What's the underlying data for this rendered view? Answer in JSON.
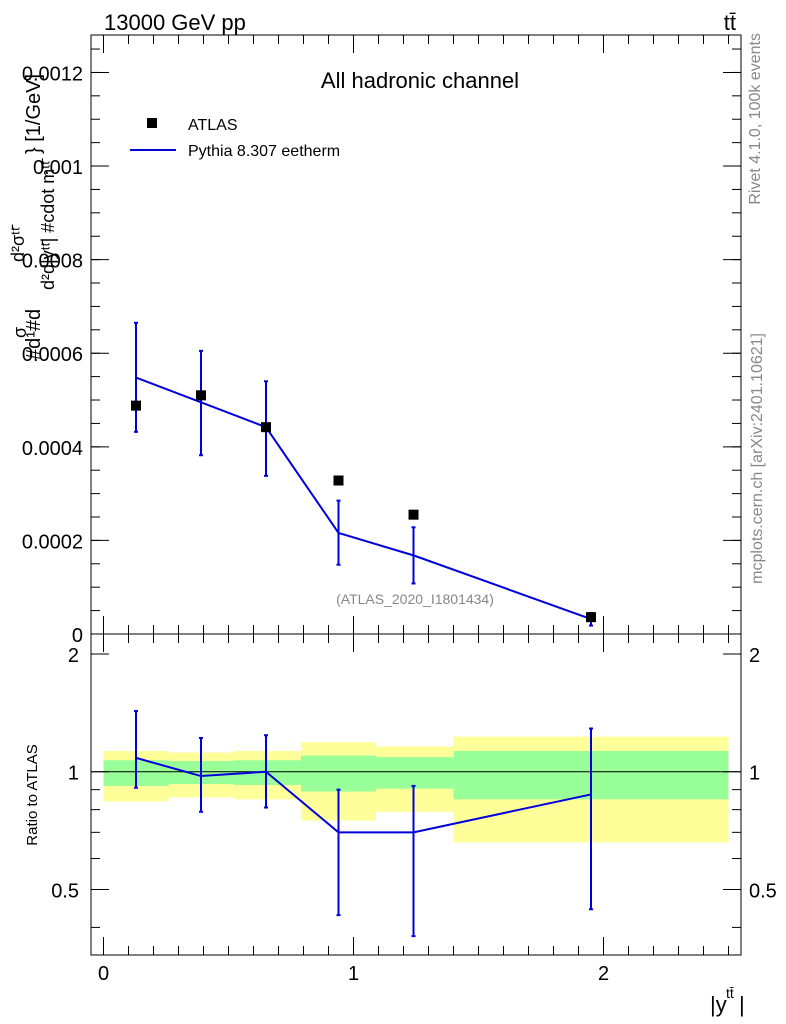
{
  "header": {
    "energy_label": "13000 GeV pp",
    "process_label": "tt̄"
  },
  "side_labels": {
    "rivet": "Rivet 4.1.0,  100k events",
    "mcplots": "mcplots.cern.ch [arXiv:2401.10621]"
  },
  "chart_data": [
    {
      "type": "scatter",
      "panel": "main",
      "title": "All hadronic channel",
      "analysis_tag": "(ATLAS_2020_I1801434)",
      "ylabel": "#d 1/σ #d d²σ^{tt̄} / d²#d|y^{tt̄}| #cdot m^{tt̄} } [1/GeV]",
      "ylabel_lines": [
        "#d¹#d",
        "σ",
        "d²σᵗᵗ̄",
        "d²d|yᵗᵗ̄| #cdot mᵗᵗ̄",
        "} [1/GeV]"
      ],
      "xlim": [
        -0.05,
        2.55
      ],
      "ylim": [
        0,
        0.00128
      ],
      "yticks": [
        {
          "value": 0,
          "label": "0"
        },
        {
          "value": 0.0002,
          "label": "0.0002"
        },
        {
          "value": 0.0004,
          "label": "0.0004"
        },
        {
          "value": 0.0006,
          "label": "0.0006"
        },
        {
          "value": 0.0008,
          "label": "0.0008"
        },
        {
          "value": 0.001,
          "label": "0.001"
        },
        {
          "value": 0.0012,
          "label": "0.0012"
        }
      ],
      "legend": [
        {
          "name": "ATLAS",
          "style": "marker",
          "color": "#000000"
        },
        {
          "name": "Pythia 8.307 eetherm",
          "style": "line",
          "color": "#0000dd"
        }
      ],
      "series": [
        {
          "name": "ATLAS",
          "x": [
            0.13,
            0.39,
            0.65,
            0.94,
            1.24,
            1.95
          ],
          "y": [
            0.000488,
            0.00051,
            0.000442,
            0.000328,
            0.000255,
            3.6e-05
          ]
        },
        {
          "name": "Pythia 8.307 eetherm",
          "x": [
            0.13,
            0.39,
            0.65,
            0.94,
            1.24,
            1.95
          ],
          "y": [
            0.000548,
            0.000495,
            0.000442,
            0.000216,
            0.000168,
            3.2e-05
          ],
          "y_err_low": [
            0.000432,
            0.000382,
            0.000338,
            0.000148,
            0.000108,
            1.8e-05
          ],
          "y_err_high": [
            0.000665,
            0.000605,
            0.00054,
            0.000285,
            0.000228,
            4.5e-05
          ]
        }
      ]
    },
    {
      "type": "line",
      "panel": "ratio",
      "ylabel": "Ratio to ATLAS",
      "xlabel": "|y^{tt̄}|",
      "xlabel_main": "|y",
      "xlabel_sup": "tt̄",
      "xlabel_end": "|",
      "xlim": [
        -0.05,
        2.55
      ],
      "ylim": [
        0.34,
        2.25
      ],
      "xticks": [
        {
          "value": 0,
          "label": "0"
        },
        {
          "value": 1,
          "label": "1"
        },
        {
          "value": 2,
          "label": "2"
        }
      ],
      "yticks": [
        {
          "value": 0.5,
          "label": "0.5"
        },
        {
          "value": 1,
          "label": "1"
        },
        {
          "value": 2,
          "label": "2"
        }
      ],
      "bands": [
        {
          "x0": 0.0,
          "x1": 0.26,
          "yellow": [
            0.84,
            1.13
          ],
          "green": [
            0.92,
            1.07
          ]
        },
        {
          "x0": 0.26,
          "x1": 0.52,
          "yellow": [
            0.86,
            1.12
          ],
          "green": [
            0.93,
            1.065
          ]
        },
        {
          "x0": 0.52,
          "x1": 0.79,
          "yellow": [
            0.85,
            1.13
          ],
          "green": [
            0.925,
            1.07
          ]
        },
        {
          "x0": 0.79,
          "x1": 1.09,
          "yellow": [
            0.75,
            1.19
          ],
          "green": [
            0.89,
            1.1
          ]
        },
        {
          "x0": 1.09,
          "x1": 1.4,
          "yellow": [
            0.79,
            1.16
          ],
          "green": [
            0.905,
            1.09
          ]
        },
        {
          "x0": 1.4,
          "x1": 2.5,
          "yellow": [
            0.66,
            1.23
          ],
          "green": [
            0.85,
            1.13
          ]
        }
      ],
      "series": [
        {
          "name": "Pythia 8.307 eetherm / ATLAS",
          "x": [
            0.13,
            0.39,
            0.65,
            0.94,
            1.24,
            1.95
          ],
          "y": [
            1.085,
            0.975,
            1.0,
            0.7,
            0.7,
            0.875
          ],
          "y_err_low": [
            0.91,
            0.79,
            0.81,
            0.43,
            0.38,
            0.445
          ],
          "y_err_high": [
            1.43,
            1.22,
            1.24,
            0.9,
            0.92,
            1.29
          ]
        }
      ]
    }
  ]
}
